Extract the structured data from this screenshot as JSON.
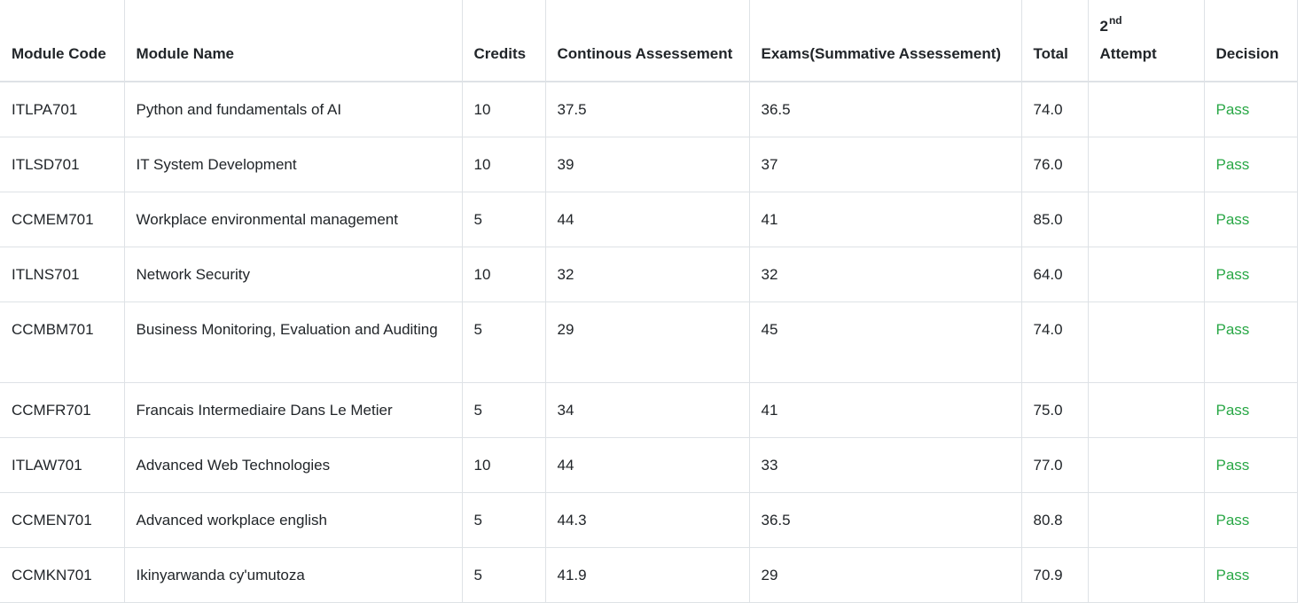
{
  "headers": {
    "code": "Module Code",
    "name": "Module Name",
    "credits": "Credits",
    "ca": "Continous Assessement",
    "exam": "Exams(Summative Assessement)",
    "total": "Total",
    "attempt_num": "2",
    "attempt_sup": "nd",
    "attempt_label": "Attempt",
    "decision": "Decision"
  },
  "colors": {
    "pass": "#28a745",
    "border": "#dee2e6",
    "text": "#212529"
  },
  "rows": [
    {
      "code": "ITLPA701",
      "name": "Python and fundamentals of AI",
      "credits": "10",
      "ca": "37.5",
      "exam": "36.5",
      "total": "74.0",
      "attempt": "",
      "decision": "Pass"
    },
    {
      "code": "ITLSD701",
      "name": "IT System Development",
      "credits": "10",
      "ca": "39",
      "exam": "37",
      "total": "76.0",
      "attempt": "",
      "decision": "Pass"
    },
    {
      "code": "CCMEM701",
      "name": "Workplace environmental management",
      "credits": "5",
      "ca": "44",
      "exam": "41",
      "total": "85.0",
      "attempt": "",
      "decision": "Pass"
    },
    {
      "code": "ITLNS701",
      "name": "Network Security",
      "credits": "10",
      "ca": "32",
      "exam": "32",
      "total": "64.0",
      "attempt": "",
      "decision": "Pass"
    },
    {
      "code": "CCMBM701",
      "name": "Business Monitoring, Evaluation and Auditing",
      "credits": "5",
      "ca": "29",
      "exam": "45",
      "total": "74.0",
      "attempt": "",
      "decision": "Pass"
    },
    {
      "code": "CCMFR701",
      "name": "Francais Intermediaire Dans Le Metier",
      "credits": "5",
      "ca": "34",
      "exam": "41",
      "total": "75.0",
      "attempt": "",
      "decision": "Pass"
    },
    {
      "code": "ITLAW701",
      "name": "Advanced Web Technologies",
      "credits": "10",
      "ca": "44",
      "exam": "33",
      "total": "77.0",
      "attempt": "",
      "decision": "Pass"
    },
    {
      "code": "CCMEN701",
      "name": "Advanced workplace english",
      "credits": "5",
      "ca": "44.3",
      "exam": "36.5",
      "total": "80.8",
      "attempt": "",
      "decision": "Pass"
    },
    {
      "code": "CCMKN701",
      "name": "Ikinyarwanda cy'umutoza",
      "credits": "5",
      "ca": "41.9",
      "exam": "29",
      "total": "70.9",
      "attempt": "",
      "decision": "Pass"
    }
  ]
}
